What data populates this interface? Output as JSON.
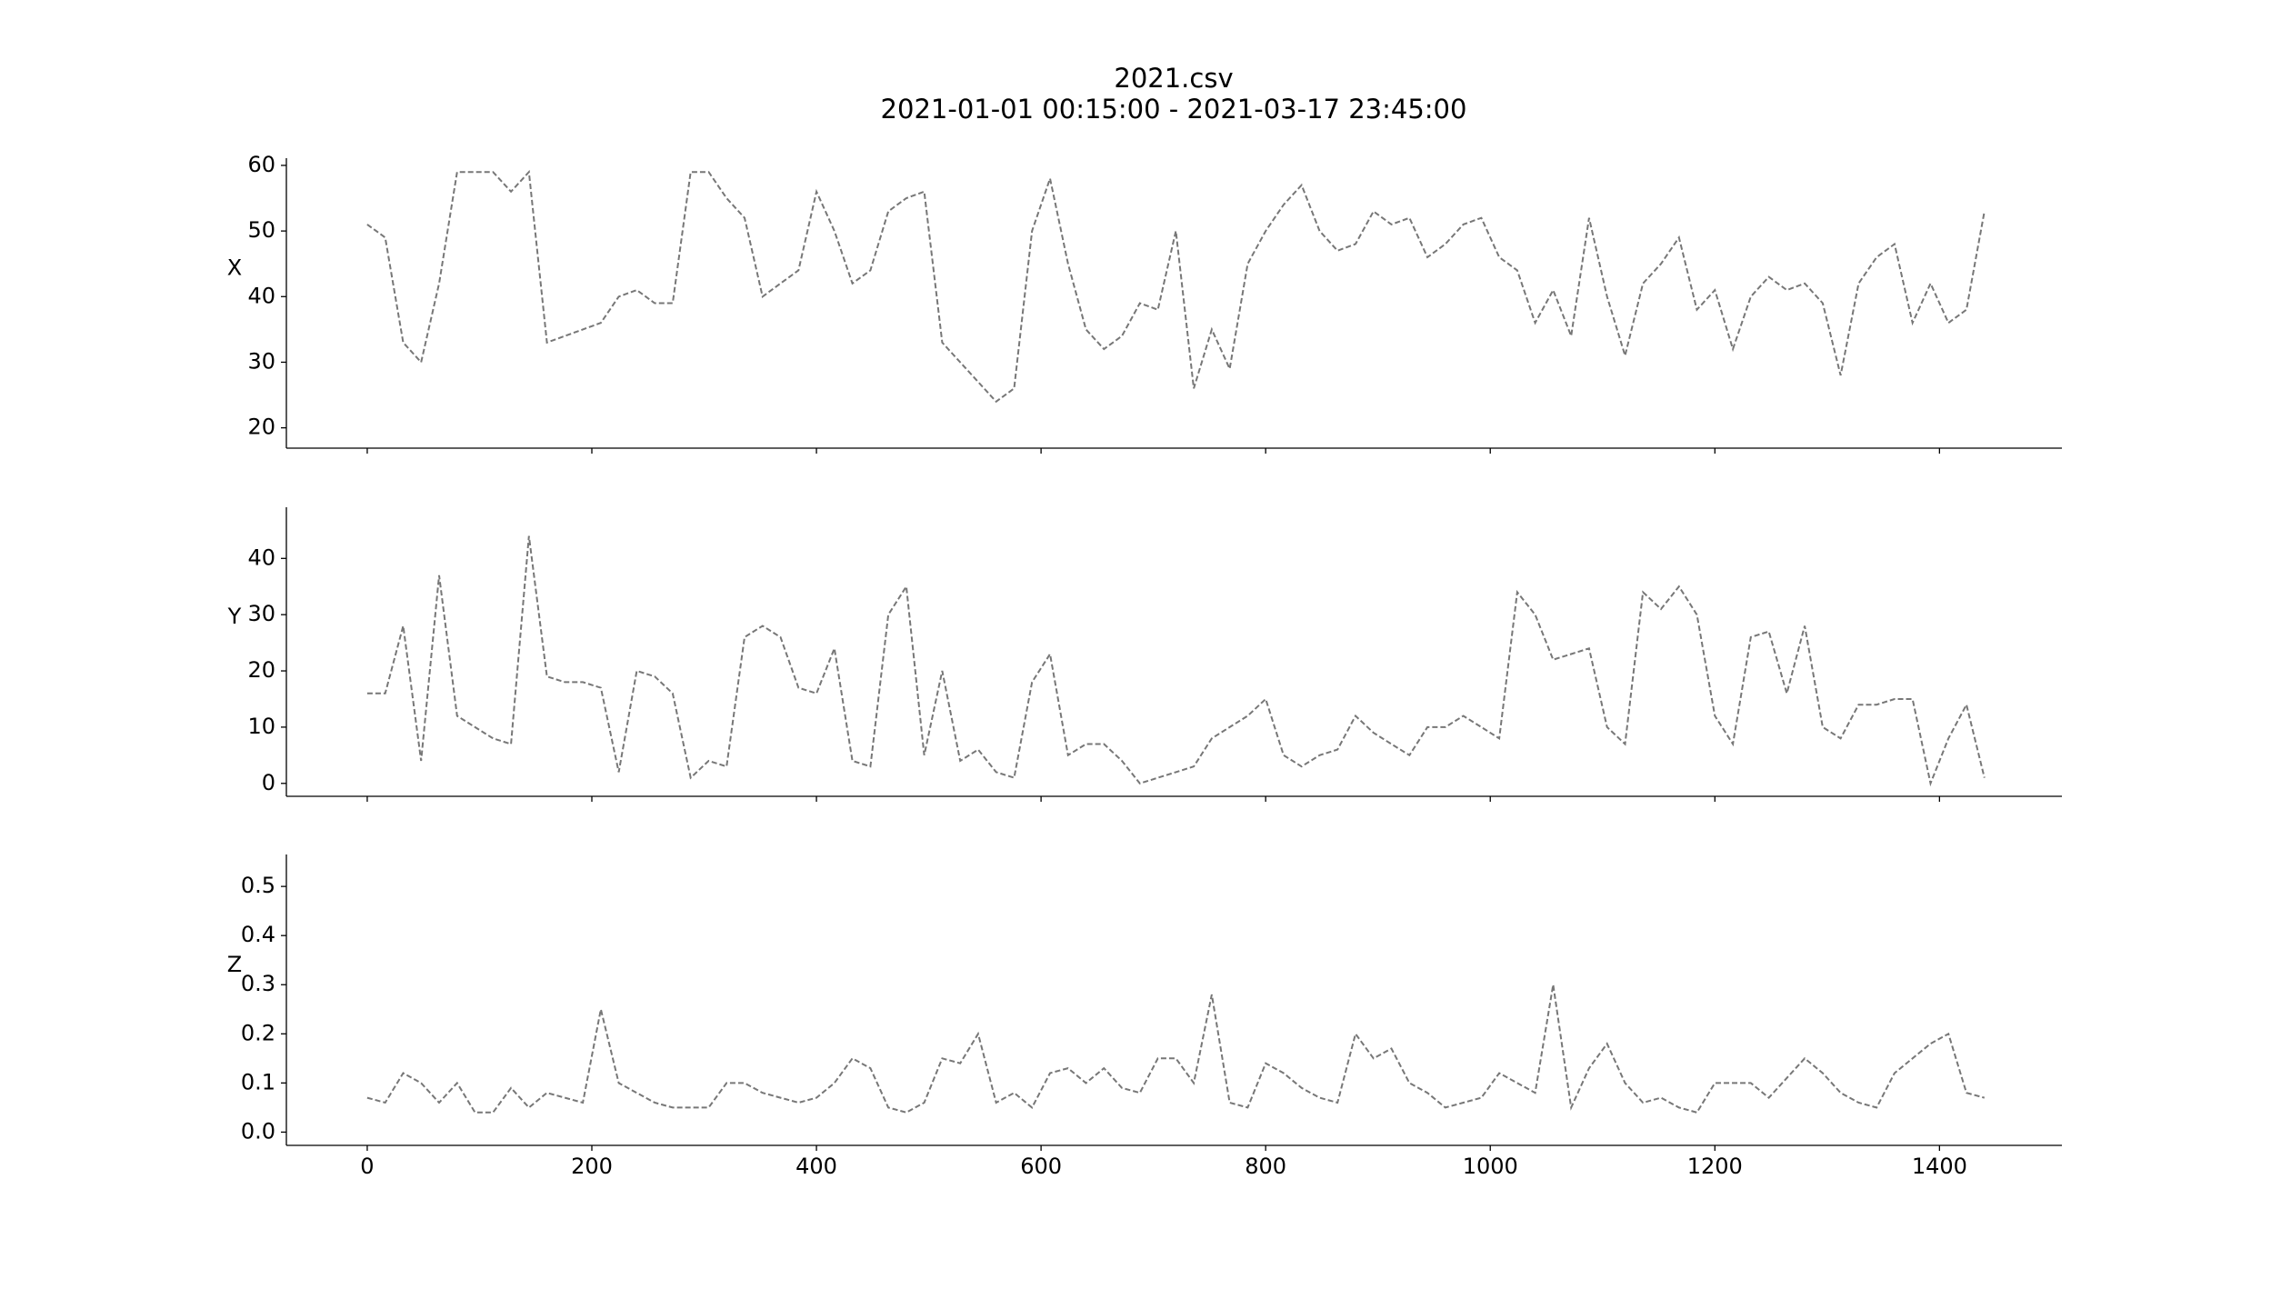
{
  "chart_data": [
    {
      "type": "line",
      "title": "2021.csv",
      "subtitle": "2021-01-01 00:15:00 - 2021-03-17 23:45:00",
      "ylabel": "X",
      "color": "#777777",
      "x": [
        0,
        16,
        32,
        48,
        64,
        80,
        96,
        112,
        128,
        144,
        160,
        176,
        192,
        208,
        224,
        240,
        256,
        272,
        288,
        304,
        320,
        336,
        352,
        368,
        384,
        400,
        416,
        432,
        448,
        464,
        480,
        496,
        512,
        528,
        544,
        560,
        576,
        592,
        608,
        624,
        640,
        656,
        672,
        688,
        704,
        720,
        736,
        752,
        768,
        784,
        800,
        816,
        832,
        848,
        864,
        880,
        896,
        912,
        928,
        944,
        960,
        976,
        992,
        1008,
        1024,
        1040,
        1056,
        1072,
        1088,
        1104,
        1120,
        1136,
        1152,
        1168,
        1184,
        1200,
        1216,
        1232,
        1248,
        1264,
        1280,
        1296,
        1312,
        1328,
        1344,
        1360,
        1376,
        1392,
        1408,
        1424,
        1440
      ],
      "values": [
        51,
        49,
        33,
        30,
        42,
        59,
        59,
        59,
        56,
        59,
        33,
        34,
        35,
        36,
        40,
        41,
        39,
        39,
        59,
        59,
        55,
        52,
        40,
        42,
        44,
        56,
        50,
        42,
        44,
        53,
        55,
        56,
        33,
        30,
        27,
        24,
        26,
        50,
        58,
        45,
        35,
        32,
        34,
        39,
        38,
        50,
        26,
        35,
        29,
        45,
        50,
        54,
        57,
        50,
        47,
        48,
        53,
        51,
        52,
        46,
        48,
        51,
        52,
        46,
        44,
        36,
        41,
        34,
        52,
        40,
        31,
        42,
        45,
        49,
        38,
        41,
        32,
        40,
        43,
        41,
        42,
        39,
        28,
        42,
        46,
        48,
        36,
        42,
        36,
        38,
        53
      ],
      "xlim": [
        -72,
        1509
      ],
      "ylim": [
        16.9,
        61.1
      ],
      "yticks": [
        20,
        30,
        40,
        50,
        60
      ]
    },
    {
      "type": "line",
      "ylabel": "Y",
      "color": "#777777",
      "x": [
        0,
        16,
        32,
        48,
        64,
        80,
        96,
        112,
        128,
        144,
        160,
        176,
        192,
        208,
        224,
        240,
        256,
        272,
        288,
        304,
        320,
        336,
        352,
        368,
        384,
        400,
        416,
        432,
        448,
        464,
        480,
        496,
        512,
        528,
        544,
        560,
        576,
        592,
        608,
        624,
        640,
        656,
        672,
        688,
        704,
        720,
        736,
        752,
        768,
        784,
        800,
        816,
        832,
        848,
        864,
        880,
        896,
        912,
        928,
        944,
        960,
        976,
        992,
        1008,
        1024,
        1040,
        1056,
        1072,
        1088,
        1104,
        1120,
        1136,
        1152,
        1168,
        1184,
        1200,
        1216,
        1232,
        1248,
        1264,
        1280,
        1296,
        1312,
        1328,
        1344,
        1360,
        1376,
        1392,
        1408,
        1424,
        1440
      ],
      "values": [
        16,
        16,
        28,
        4,
        37,
        12,
        10,
        8,
        7,
        44,
        19,
        18,
        18,
        17,
        2,
        20,
        19,
        16,
        1,
        4,
        3,
        26,
        28,
        26,
        17,
        16,
        24,
        4,
        3,
        30,
        35,
        5,
        20,
        4,
        6,
        2,
        1,
        18,
        23,
        5,
        7,
        7,
        4,
        0,
        1,
        2,
        3,
        8,
        10,
        12,
        15,
        5,
        3,
        5,
        6,
        12,
        9,
        7,
        5,
        10,
        10,
        12,
        10,
        8,
        34,
        30,
        22,
        23,
        24,
        10,
        7,
        34,
        31,
        35,
        30,
        12,
        7,
        26,
        27,
        16,
        28,
        10,
        8,
        14,
        14,
        15,
        15,
        0,
        8,
        14,
        1
      ],
      "xlim": [
        -72,
        1509
      ],
      "ylim": [
        -2.3,
        49.1
      ],
      "yticks": [
        0,
        10,
        20,
        30,
        40
      ]
    },
    {
      "type": "line",
      "ylabel": "Z",
      "color": "#777777",
      "x": [
        0,
        16,
        32,
        48,
        64,
        80,
        96,
        112,
        128,
        144,
        160,
        176,
        192,
        208,
        224,
        240,
        256,
        272,
        288,
        304,
        320,
        336,
        352,
        368,
        384,
        400,
        416,
        432,
        448,
        464,
        480,
        496,
        512,
        528,
        544,
        560,
        576,
        592,
        608,
        624,
        640,
        656,
        672,
        688,
        704,
        720,
        736,
        752,
        768,
        784,
        800,
        816,
        832,
        848,
        864,
        880,
        896,
        912,
        928,
        944,
        960,
        976,
        992,
        1008,
        1024,
        1040,
        1056,
        1072,
        1088,
        1104,
        1120,
        1136,
        1152,
        1168,
        1184,
        1200,
        1216,
        1232,
        1248,
        1264,
        1280,
        1296,
        1312,
        1328,
        1344,
        1360,
        1376,
        1392,
        1408,
        1424,
        1440
      ],
      "values": [
        0.07,
        0.06,
        0.12,
        0.1,
        0.06,
        0.1,
        0.04,
        0.04,
        0.09,
        0.05,
        0.08,
        0.07,
        0.06,
        0.25,
        0.1,
        0.08,
        0.06,
        0.05,
        0.05,
        0.05,
        0.1,
        0.1,
        0.08,
        0.07,
        0.06,
        0.07,
        0.1,
        0.15,
        0.13,
        0.05,
        0.04,
        0.06,
        0.15,
        0.14,
        0.2,
        0.06,
        0.08,
        0.05,
        0.12,
        0.13,
        0.1,
        0.13,
        0.09,
        0.08,
        0.15,
        0.15,
        0.1,
        0.28,
        0.06,
        0.05,
        0.14,
        0.12,
        0.09,
        0.07,
        0.06,
        0.2,
        0.15,
        0.17,
        0.1,
        0.08,
        0.05,
        0.06,
        0.07,
        0.12,
        0.1,
        0.08,
        0.3,
        0.05,
        0.13,
        0.18,
        0.1,
        0.06,
        0.07,
        0.05,
        0.04,
        0.1,
        0.1,
        0.1,
        0.07,
        0.11,
        0.15,
        0.12,
        0.08,
        0.06,
        0.05,
        0.12,
        0.15,
        0.18,
        0.2,
        0.08,
        0.07
      ],
      "xlim": [
        -72,
        1509
      ],
      "ylim": [
        -0.027,
        0.565
      ],
      "yticks": [
        0.0,
        0.1,
        0.2,
        0.3,
        0.4,
        0.5
      ],
      "xticks": [
        0,
        200,
        400,
        600,
        800,
        1000,
        1200,
        1400
      ]
    }
  ]
}
